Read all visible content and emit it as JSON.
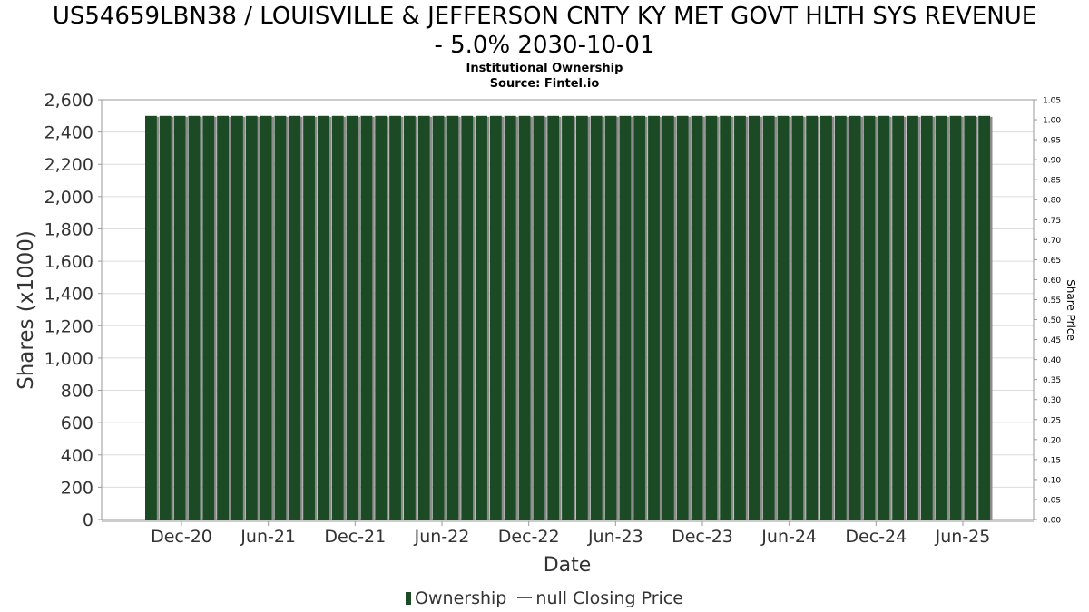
{
  "title_line1": "US54659LBN38 / LOUISVILLE & JEFFERSON CNTY KY MET GOVT HLTH SYS REVENUE",
  "title_line2": "- 5.0% 2030-10-01",
  "subtitle": "Institutional Ownership",
  "source": "Source: Fintel.io",
  "legend": {
    "ownership": "Ownership",
    "price": "null Closing Price"
  },
  "colors": {
    "bar": "#1b4a25",
    "bar_shadow": "#8c8c8c",
    "grid": "#dcdcdc",
    "axis": "#999999",
    "text": "#333333"
  },
  "chart_data": {
    "type": "bar",
    "xlabel": "Date",
    "ylabel": "Shares (x1000)",
    "y2label": "Share Price",
    "ylim": [
      0,
      2600
    ],
    "yticks": [
      0,
      200,
      400,
      600,
      800,
      1000,
      1200,
      1400,
      1600,
      1800,
      2000,
      2200,
      2400,
      2600
    ],
    "y2lim": [
      0,
      1.05
    ],
    "y2ticks": [
      "0.00",
      "0.05",
      "0.10",
      "0.15",
      "0.20",
      "0.25",
      "0.30",
      "0.35",
      "0.40",
      "0.45",
      "0.50",
      "0.55",
      "0.60",
      "0.65",
      "0.70",
      "0.75",
      "0.80",
      "0.85",
      "0.90",
      "0.95",
      "1.00",
      "1.05"
    ],
    "xticks": [
      "Dec-20",
      "Jun-21",
      "Dec-21",
      "Jun-22",
      "Dec-22",
      "Jun-23",
      "Dec-23",
      "Jun-24",
      "Dec-24",
      "Jun-25"
    ],
    "grid": true,
    "legend_position": "bottom",
    "series": [
      {
        "name": "Ownership",
        "values": [
          2500,
          2500,
          2500,
          2500,
          2500,
          2500,
          2500,
          2500,
          2500,
          2500,
          2500,
          2500,
          2500,
          2500,
          2500,
          2500,
          2500,
          2500,
          2500,
          2500,
          2500,
          2500,
          2500,
          2500,
          2500,
          2500,
          2500,
          2500,
          2500,
          2500,
          2500,
          2500,
          2500,
          2500,
          2500,
          2500,
          2500,
          2500,
          2500,
          2500,
          2500,
          2500,
          2500,
          2500,
          2500,
          2500,
          2500,
          2500,
          2500,
          2500,
          2500,
          2500,
          2500,
          2500,
          2500,
          2500,
          2500,
          2500,
          2500
        ]
      }
    ]
  }
}
